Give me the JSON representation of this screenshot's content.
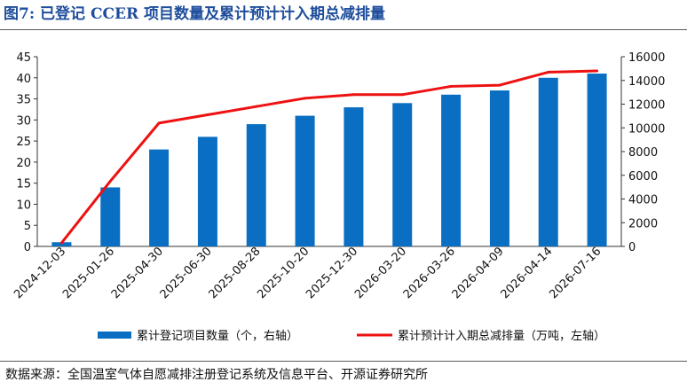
{
  "figure": {
    "title": "图7:  已登记 CCER 项目数量及累计预计计入期总减排量",
    "source": "数据来源：全国温室气体自愿减排注册登记系统及信息平台、开源证券研究所"
  },
  "colors": {
    "bar": "#0a6fc2",
    "line": "#ee1111",
    "title": "#1f4e9c"
  },
  "chart_data": {
    "type": "bar",
    "categories": [
      "2024-12-03",
      "2025-01-26",
      "2025-04-30",
      "2025-06-30",
      "2025-08-28",
      "2025-10-20",
      "2025-12-30",
      "2026-03-20",
      "2026-03-26",
      "2026-04-09",
      "2026-04-14",
      "2026-07-16"
    ],
    "series": [
      {
        "name": "累计登记项目数量（个，右轴）",
        "type": "bar",
        "axis": "left",
        "values": [
          1,
          14,
          23,
          26,
          29,
          31,
          33,
          34,
          36,
          37,
          40,
          41
        ]
      },
      {
        "name": "累计预计计入期总减排量（万吨，左轴）",
        "type": "line",
        "axis": "right",
        "values": [
          300,
          5500,
          10400,
          11100,
          11800,
          12500,
          12800,
          12800,
          13500,
          13600,
          14700,
          14800
        ]
      }
    ],
    "y_left": {
      "ylim": [
        0,
        45
      ],
      "ticks": [
        "0",
        "5",
        "10",
        "15",
        "20",
        "25",
        "30",
        "35",
        "40",
        "45"
      ]
    },
    "y_right": {
      "ylim": [
        0,
        16000
      ],
      "ticks": [
        "0",
        "2000",
        "4000",
        "6000",
        "8000",
        "10000",
        "12000",
        "14000",
        "16000"
      ]
    },
    "grid": false,
    "legend_position": "bottom"
  }
}
